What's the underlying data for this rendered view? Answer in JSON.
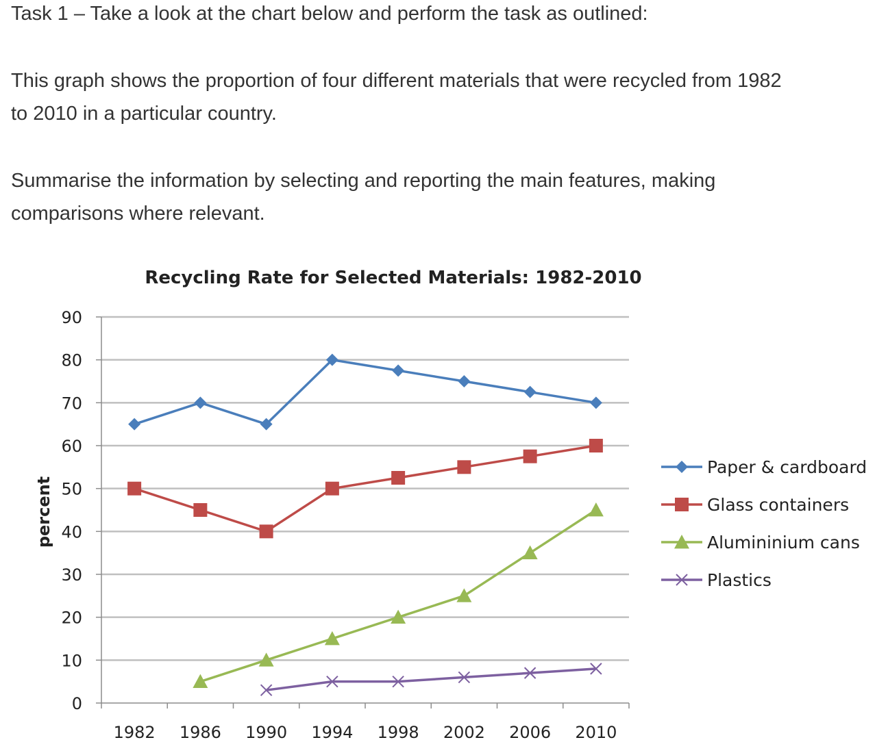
{
  "task": {
    "heading": "Task 1 – Take a look at the chart below and perform the task as outlined:",
    "description_line1": "This graph shows the proportion of four different materials that were recycled from 1982",
    "description_line2": "to 2010 in a particular country.",
    "instruction_line1": "Summarise the information by selecting and reporting the main features, making",
    "instruction_line2": "comparisons where relevant."
  },
  "chart_data": {
    "type": "line",
    "title": "Recycling Rate for Selected Materials: 1982-2010",
    "xlabel": "",
    "ylabel": "percent",
    "ylim": [
      0,
      90
    ],
    "yticks": [
      0,
      10,
      20,
      30,
      40,
      50,
      60,
      70,
      80,
      90
    ],
    "grid": true,
    "legend_position": "right",
    "x": [
      "1982",
      "1986",
      "1990",
      "1994",
      "1998",
      "2002",
      "2006",
      "2010"
    ],
    "series": [
      {
        "name": "Paper & cardboard",
        "color": "#4a7ebb",
        "marker": "diamond",
        "values": [
          65,
          70,
          65,
          80,
          77.5,
          75,
          72.5,
          70
        ]
      },
      {
        "name": "Glass containers",
        "color": "#be4b48",
        "marker": "square",
        "values": [
          50,
          45,
          40,
          50,
          52.5,
          55,
          57.5,
          60
        ]
      },
      {
        "name": "Aluminium cans",
        "legend_text": "Alumininium cans",
        "color": "#98b954",
        "marker": "triangle",
        "values": [
          null,
          5,
          10,
          15,
          20,
          25,
          35,
          45
        ]
      },
      {
        "name": "Plastics",
        "color": "#7d60a0",
        "marker": "x",
        "values": [
          null,
          null,
          3,
          5,
          5,
          6,
          7,
          8
        ]
      }
    ]
  }
}
